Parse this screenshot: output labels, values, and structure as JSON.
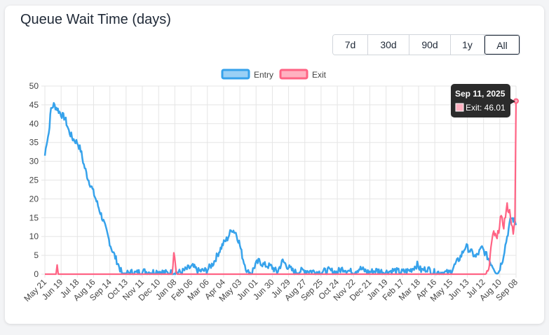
{
  "header": {
    "title": "Queue Wait Time (days)"
  },
  "range_buttons": [
    {
      "label": "7d",
      "active": false
    },
    {
      "label": "30d",
      "active": false
    },
    {
      "label": "90d",
      "active": false
    },
    {
      "label": "1y",
      "active": false
    },
    {
      "label": "All",
      "active": true
    }
  ],
  "tooltip": {
    "title": "Sep 11, 2025",
    "text": "Exit: 46.01"
  },
  "colors": {
    "entry": "#36a2eb",
    "entry_fill": "#9ad0f5",
    "exit": "#ff6384",
    "exit_fill": "#ffb1c1",
    "grid": "#e5e5e5"
  },
  "chart_data": {
    "type": "line",
    "title": "Queue Wait Time (days)",
    "ylim": [
      0,
      50
    ],
    "yticks": [
      0,
      5,
      10,
      15,
      20,
      25,
      30,
      35,
      40,
      45,
      50
    ],
    "x_range": [
      "2023-05-21",
      "2025-09-11"
    ],
    "x_ticks": [
      "May 21",
      "Jun 19",
      "Jul 18",
      "Aug 16",
      "Sep 14",
      "Oct 13",
      "Nov 11",
      "Dec 10",
      "Jan 08",
      "Feb 06",
      "Mar 06",
      "Apr 04",
      "May 03",
      "Jun 01",
      "Jun 30",
      "Jul 29",
      "Aug 27",
      "Sep 25",
      "Oct 24",
      "Nov 22",
      "Dec 21",
      "Jan 19",
      "Feb 17",
      "Mar 18",
      "Apr 16",
      "May 15",
      "Jun 13",
      "Jul 12",
      "Aug 10",
      "Sep 08"
    ],
    "legend": "top",
    "grid": true,
    "series": [
      {
        "name": "Entry",
        "points": [
          [
            "2023-05-21",
            31.5
          ],
          [
            "2023-05-24",
            35
          ],
          [
            "2023-05-28",
            37.5
          ],
          [
            "2023-06-01",
            44
          ],
          [
            "2023-06-06",
            45
          ],
          [
            "2023-06-12",
            44
          ],
          [
            "2023-06-19",
            42.5
          ],
          [
            "2023-06-26",
            41.5
          ],
          [
            "2023-07-03",
            38
          ],
          [
            "2023-07-10",
            36
          ],
          [
            "2023-07-18",
            35
          ],
          [
            "2023-07-24",
            33
          ],
          [
            "2023-07-30",
            29
          ],
          [
            "2023-08-06",
            25.5
          ],
          [
            "2023-08-13",
            23
          ],
          [
            "2023-08-20",
            20
          ],
          [
            "2023-08-27",
            17
          ],
          [
            "2023-09-03",
            14
          ],
          [
            "2023-09-10",
            10.5
          ],
          [
            "2023-09-17",
            7
          ],
          [
            "2023-09-24",
            4.5
          ],
          [
            "2023-10-01",
            2
          ],
          [
            "2023-10-06",
            0.2
          ],
          [
            "2023-10-13",
            0.2
          ],
          [
            "2023-10-22",
            0.5
          ],
          [
            "2023-11-01",
            0.3
          ],
          [
            "2023-11-11",
            0.8
          ],
          [
            "2023-11-25",
            0.5
          ],
          [
            "2023-12-10",
            0.8
          ],
          [
            "2023-12-25",
            0.3
          ],
          [
            "2024-01-08",
            0.5
          ],
          [
            "2024-01-20",
            0.5
          ],
          [
            "2024-02-01",
            1.5
          ],
          [
            "2024-02-10",
            2
          ],
          [
            "2024-02-20",
            0.8
          ],
          [
            "2024-03-06",
            1
          ],
          [
            "2024-03-18",
            3
          ],
          [
            "2024-03-28",
            6
          ],
          [
            "2024-04-04",
            8
          ],
          [
            "2024-04-12",
            9.5
          ],
          [
            "2024-04-20",
            12
          ],
          [
            "2024-04-27",
            11
          ],
          [
            "2024-05-03",
            8.5
          ],
          [
            "2024-05-10",
            4
          ],
          [
            "2024-05-18",
            0.5
          ],
          [
            "2024-05-25",
            0.3
          ],
          [
            "2024-06-01",
            2.5
          ],
          [
            "2024-06-08",
            3.5
          ],
          [
            "2024-06-15",
            2.5
          ],
          [
            "2024-06-30",
            2
          ],
          [
            "2024-07-10",
            0.5
          ],
          [
            "2024-07-20",
            3.5
          ],
          [
            "2024-07-29",
            2
          ],
          [
            "2024-08-10",
            0.5
          ],
          [
            "2024-08-27",
            1
          ],
          [
            "2024-09-10",
            0.8
          ],
          [
            "2024-09-25",
            0.5
          ],
          [
            "2024-10-10",
            1
          ],
          [
            "2024-10-24",
            0.5
          ],
          [
            "2024-11-05",
            1.5
          ],
          [
            "2024-11-22",
            0.5
          ],
          [
            "2024-12-05",
            1.5
          ],
          [
            "2024-12-21",
            0.5
          ],
          [
            "2025-01-05",
            1
          ],
          [
            "2025-01-19",
            0.5
          ],
          [
            "2025-02-05",
            1
          ],
          [
            "2025-02-17",
            0.5
          ],
          [
            "2025-03-05",
            1
          ],
          [
            "2025-03-18",
            2.5
          ],
          [
            "2025-03-25",
            1
          ],
          [
            "2025-04-05",
            1.5
          ],
          [
            "2025-04-16",
            0.5
          ],
          [
            "2025-05-01",
            0.5
          ],
          [
            "2025-05-15",
            0.3
          ],
          [
            "2025-05-25",
            2.5
          ],
          [
            "2025-06-05",
            5
          ],
          [
            "2025-06-13",
            7.5
          ],
          [
            "2025-06-22",
            6
          ],
          [
            "2025-07-01",
            4.5
          ],
          [
            "2025-07-12",
            7
          ],
          [
            "2025-07-20",
            5
          ],
          [
            "2025-07-28",
            3
          ],
          [
            "2025-08-05",
            1
          ],
          [
            "2025-08-10",
            0.3
          ],
          [
            "2025-08-18",
            4
          ],
          [
            "2025-08-26",
            10
          ],
          [
            "2025-09-02",
            15
          ],
          [
            "2025-09-06",
            14.5
          ],
          [
            "2025-09-11",
            13.5
          ]
        ]
      },
      {
        "name": "Exit",
        "points": [
          [
            "2023-05-21",
            0
          ],
          [
            "2023-06-10",
            0
          ],
          [
            "2023-06-12",
            2.5
          ],
          [
            "2023-06-14",
            0
          ],
          [
            "2024-01-04",
            0
          ],
          [
            "2024-01-07",
            6.5
          ],
          [
            "2024-01-10",
            2
          ],
          [
            "2024-01-13",
            0
          ],
          [
            "2025-07-18",
            0
          ],
          [
            "2025-07-24",
            0.5
          ],
          [
            "2025-07-28",
            7
          ],
          [
            "2025-08-02",
            11
          ],
          [
            "2025-08-08",
            9
          ],
          [
            "2025-08-14",
            15
          ],
          [
            "2025-08-20",
            13
          ],
          [
            "2025-08-26",
            18
          ],
          [
            "2025-09-01",
            16
          ],
          [
            "2025-09-06",
            10
          ],
          [
            "2025-09-09",
            14
          ],
          [
            "2025-09-11",
            46.01
          ]
        ]
      }
    ]
  }
}
